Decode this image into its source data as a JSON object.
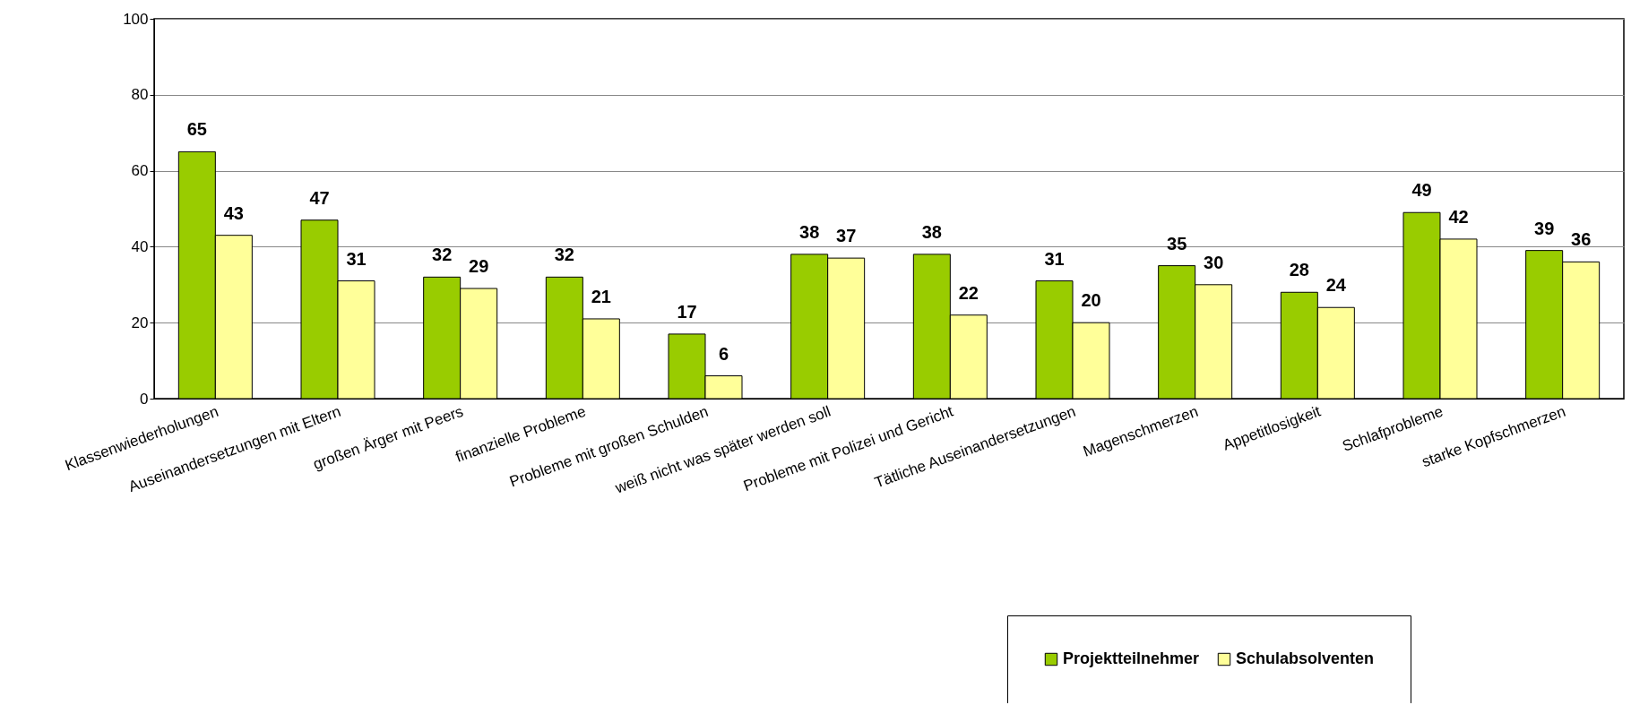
{
  "chart_data": {
    "type": "bar",
    "categories": [
      "Klassenwiederholungen",
      "Auseinandersetzungen mit Eltern",
      "großen Ärger mit Peers",
      "finanzielle Probleme",
      "Probleme mit großen Schulden",
      "weiß nicht was später werden soll",
      "Probleme mit Polizei und Gericht",
      "Tätliche Auseinandersetzungen",
      "Magenschmerzen",
      "Appetitlosigkeit",
      "Schlafprobleme",
      "starke Kopfschmerzen"
    ],
    "series": [
      {
        "name": "Projektteilnehmer",
        "color": "#99cc00",
        "values": [
          65,
          47,
          32,
          32,
          17,
          38,
          38,
          31,
          35,
          28,
          49,
          39
        ]
      },
      {
        "name": "Schulabsolventen",
        "color": "#ffff99",
        "values": [
          43,
          31,
          29,
          21,
          6,
          37,
          22,
          20,
          30,
          24,
          42,
          36
        ]
      }
    ],
    "ylim": [
      0,
      100
    ],
    "yticks": [
      0,
      20,
      40,
      60,
      80,
      100
    ],
    "grid": "y",
    "legend": "bottom right",
    "data_labels": true
  }
}
